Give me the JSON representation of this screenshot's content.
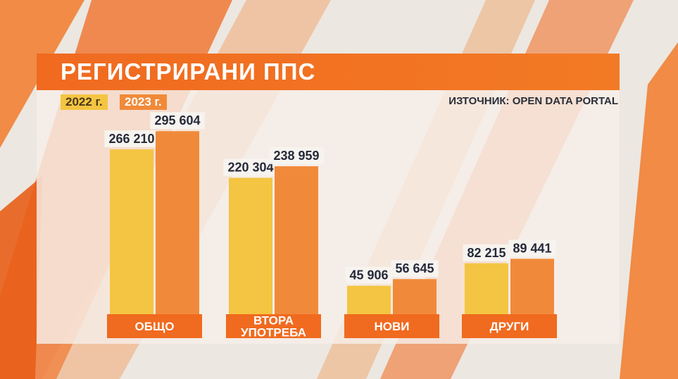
{
  "title": "РЕГИСТРИРАНИ ППС",
  "source": "ИЗТОЧНИК: OPEN DATA PORTAL",
  "legend": [
    "2022 г.",
    "2023 г."
  ],
  "colors": {
    "series_2022": "#f4c542",
    "series_2023": "#f08a3a",
    "category_band": "#f06a1f",
    "title_bar": "#f06a1f"
  },
  "chart_data": {
    "type": "bar",
    "categories": [
      [
        "ОБЩО"
      ],
      [
        "ВТОРА",
        "УПОТРЕБА"
      ],
      [
        "НОВИ"
      ],
      [
        "ДРУГИ"
      ]
    ],
    "series": [
      {
        "name": "2022 г.",
        "values": [
          266210,
          220304,
          45906,
          82215
        ],
        "labels": [
          "266 210",
          "220 304",
          "45 906",
          "82 215"
        ]
      },
      {
        "name": "2023 г.",
        "values": [
          295604,
          238959,
          56645,
          89441
        ],
        "labels": [
          "295 604",
          "238 959",
          "56 645",
          "89 441"
        ]
      }
    ],
    "title": "РЕГИСТРИРАНИ ППС",
    "xlabel": "",
    "ylabel": "",
    "ylim": [
      0,
      330000
    ],
    "grid": false,
    "legend_position": "top-left"
  }
}
